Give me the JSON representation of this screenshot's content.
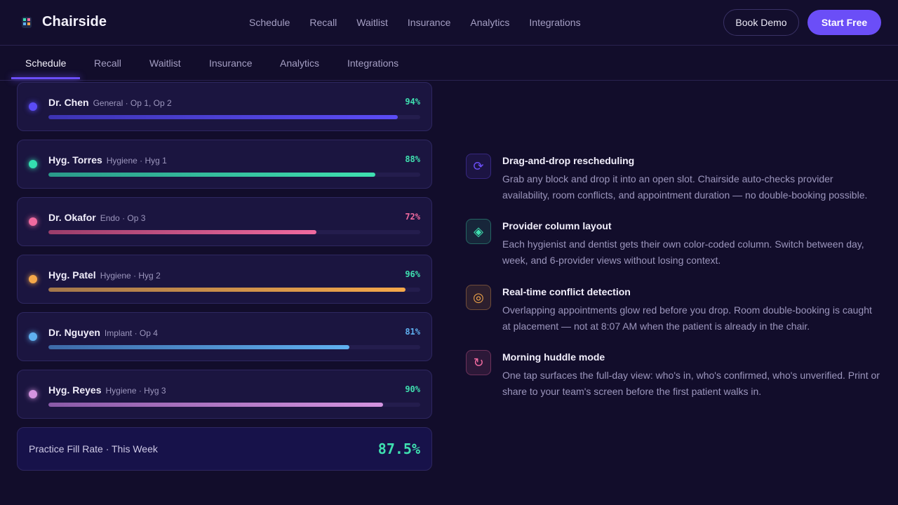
{
  "brand": {
    "name": "Chairside",
    "icon": "tooth-icon"
  },
  "topnav": {
    "items": [
      "Schedule",
      "Recall",
      "Waitlist",
      "Insurance",
      "Analytics",
      "Integrations"
    ]
  },
  "header_actions": {
    "demo_label": "Book Demo",
    "start_label": "Start Free"
  },
  "tabs": {
    "items": [
      "Schedule",
      "Recall",
      "Waitlist",
      "Insurance",
      "Analytics",
      "Integrations"
    ],
    "active": "Schedule"
  },
  "providers": [
    {
      "name": "Dr. Chen",
      "meta": "General · Op 1, Op 2",
      "percent": "94%",
      "fill": 0.94,
      "color": "#5b4cf5",
      "fill_from": "#3d34b3",
      "fill_to": "#5b4cf5",
      "pct_color": "#3fe0b0"
    },
    {
      "name": "Hyg. Torres",
      "meta": "Hygiene · Hyg 1",
      "percent": "88%",
      "fill": 0.88,
      "color": "#34e0b0",
      "fill_from": "#2a9a8a",
      "fill_to": "#3fe0b0",
      "pct_color": "#3fe0b0"
    },
    {
      "name": "Dr. Okafor",
      "meta": "Endo · Op 3",
      "percent": "72%",
      "fill": 0.72,
      "color": "#f06a9f",
      "fill_from": "#9a3d6a",
      "fill_to": "#f06a9f",
      "pct_color": "#f06a9f"
    },
    {
      "name": "Hyg. Patel",
      "meta": "Hygiene · Hyg 2",
      "percent": "96%",
      "fill": 0.96,
      "color": "#f5a84a",
      "fill_from": "#a3774b",
      "fill_to": "#f5a84a",
      "pct_color": "#3fe0b0"
    },
    {
      "name": "Dr. Nguyen",
      "meta": "Implant · Op 4",
      "percent": "81%",
      "fill": 0.81,
      "color": "#5fb0f0",
      "fill_from": "#3d6aa8",
      "fill_to": "#5fb0f0",
      "pct_color": "#5fb0f0"
    },
    {
      "name": "Hyg. Reyes",
      "meta": "Hygiene · Hyg 3",
      "percent": "90%",
      "fill": 0.9,
      "color": "#d494e0",
      "fill_from": "#8a5aa8",
      "fill_to": "#d494e0",
      "pct_color": "#3fe0b0"
    }
  ],
  "summary": {
    "label": "Practice Fill Rate · This Week",
    "value": "87.5%"
  },
  "features": [
    {
      "icon": "refresh-icon",
      "glyph": "⟳",
      "color": "#6b4ef7",
      "title": "Drag-and-drop rescheduling",
      "desc": "Grab any block and drop it into an open slot. Chairside auto-checks provider availability, room conflicts, and appointment duration — no double-booking possible."
    },
    {
      "icon": "diamond-icon",
      "glyph": "◈",
      "color": "#3fe0b0",
      "title": "Provider column layout",
      "desc": "Each hygienist and dentist gets their own color-coded column. Switch between day, week, and 6-provider views without losing context."
    },
    {
      "icon": "target-icon",
      "glyph": "◎",
      "color": "#f5a84a",
      "title": "Real-time conflict detection",
      "desc": "Overlapping appointments glow red before you drop. Room double-booking is caught at placement — not at 8:07 AM when the patient is already in the chair."
    },
    {
      "icon": "cycle-icon",
      "glyph": "↻",
      "color": "#f06a9f",
      "title": "Morning huddle mode",
      "desc": "One tap surfaces the full-day view: who's in, who's confirmed, who's unverified. Print or share to your team's screen before the first patient walks in."
    }
  ]
}
